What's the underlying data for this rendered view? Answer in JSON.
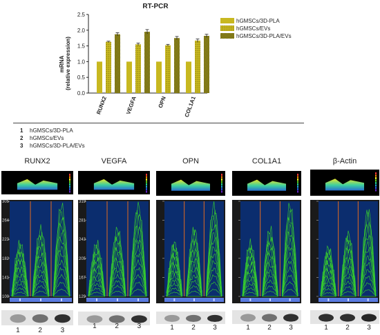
{
  "chart_data": {
    "type": "bar",
    "title": "RT-PCR",
    "ylabel": "mRNA\n(relative expression)",
    "ylim": [
      0,
      2.5
    ],
    "yticks": [
      "0.0",
      "0.5",
      "1.0",
      "1.5",
      "2.0",
      "2.5"
    ],
    "categories": [
      "RUNX2",
      "VEGFA",
      "OPN",
      "COL1A1"
    ],
    "series": [
      {
        "name": "hGMSCs/3D-PLA",
        "values": [
          1.0,
          1.0,
          1.0,
          1.0
        ],
        "errors": [
          0,
          0,
          0,
          0
        ],
        "color": "#c8b820",
        "pattern": "solid"
      },
      {
        "name": "hGMSCs/EVs",
        "values": [
          1.63,
          1.55,
          1.52,
          1.67
        ],
        "errors": [
          0.02,
          0.04,
          0.03,
          0.05
        ],
        "color": "#c8b820",
        "pattern": "dots"
      },
      {
        "name": "hGMSCs/3D-PLA/EVs",
        "values": [
          1.87,
          1.95,
          1.75,
          1.82
        ],
        "errors": [
          0.05,
          0.07,
          0.05,
          0.05
        ],
        "color": "#c8b820",
        "pattern": "dense"
      }
    ],
    "legend": "right"
  },
  "sample_legend": [
    {
      "num": "1",
      "label": "hGMSCs/3D-PLA"
    },
    {
      "num": "2",
      "label": "hGMSCs/EVs"
    },
    {
      "num": "3",
      "label": "hGMSCs/3D-PLA/EVs"
    }
  ],
  "panels": [
    {
      "name": "RUNX2",
      "yticks": [
        "305",
        "264",
        "223",
        "182",
        "141",
        "100"
      ],
      "lanes": [
        "1",
        "2",
        "3"
      ]
    },
    {
      "name": "VEGFA",
      "yticks": [
        "319",
        "281",
        "243",
        "205",
        "167",
        "129"
      ],
      "lanes": [
        "1",
        "2",
        "3"
      ]
    },
    {
      "name": "OPN",
      "yticks": [
        "",
        "",
        "",
        "",
        "",
        ""
      ],
      "lanes": [
        "1",
        "2",
        "3"
      ]
    },
    {
      "name": "COL1A1",
      "yticks": [
        "",
        "",
        "",
        "",
        "",
        ""
      ],
      "lanes": [
        "1",
        "2",
        "3"
      ]
    },
    {
      "name": "β-Actin",
      "yticks": [
        "",
        "",
        "",
        "",
        "",
        ""
      ],
      "lanes": [
        "1",
        "2",
        "3"
      ]
    }
  ],
  "colors": {
    "bar": "#c8b820",
    "wave": "#39d12c",
    "wave_bg": "#0b2d6e",
    "divider": "#e36b1f"
  }
}
